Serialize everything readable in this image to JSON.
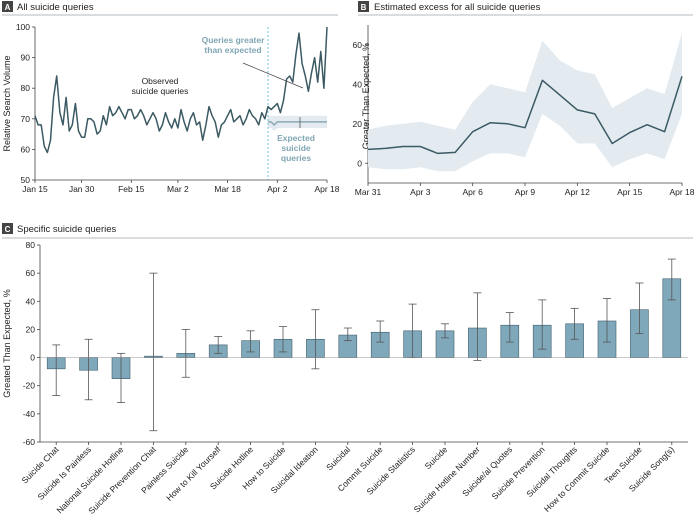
{
  "panels": {
    "A": {
      "letter": "A",
      "title": "All suicide queries"
    },
    "B": {
      "letter": "B",
      "title": "Estimated excess for all suicide queries"
    },
    "C": {
      "letter": "C",
      "title": "Specific suicide queries"
    }
  },
  "chart_data": [
    {
      "id": "A",
      "type": "line",
      "title": "All suicide queries",
      "ylabel": "Relative Search Volume",
      "ylim": [
        50,
        100
      ],
      "yticks": [
        50,
        60,
        70,
        80,
        90,
        100
      ],
      "x_tick_labels": [
        "Jan 15",
        "Jan 30",
        "Feb 15",
        "Mar 2",
        "Mar 18",
        "Apr 2",
        "Apr 18"
      ],
      "x_tick_days": [
        0,
        15,
        31,
        46,
        62,
        78,
        94
      ],
      "xlim_days": [
        0,
        94
      ],
      "cutoff_day": 75,
      "annotations": {
        "observed": "Observed\nsuicide queries",
        "greater": "Queries greater\nthan expected",
        "expected": "Expected\nsuicide\nqueries"
      },
      "series": [
        {
          "name": "Observed suicide queries",
          "days": [
            0,
            1,
            2,
            3,
            4,
            5,
            6,
            7,
            8,
            9,
            10,
            11,
            12,
            13,
            14,
            15,
            16,
            17,
            18,
            19,
            20,
            21,
            22,
            23,
            24,
            25,
            26,
            27,
            28,
            29,
            30,
            31,
            32,
            33,
            34,
            35,
            36,
            37,
            38,
            39,
            40,
            41,
            42,
            43,
            44,
            45,
            46,
            47,
            48,
            49,
            50,
            51,
            52,
            53,
            54,
            55,
            56,
            57,
            58,
            59,
            60,
            61,
            62,
            63,
            64,
            65,
            66,
            67,
            68,
            69,
            70,
            71,
            72,
            73,
            74,
            75,
            76,
            77,
            78,
            79,
            80,
            81,
            82,
            83,
            84,
            85,
            86,
            87,
            88,
            89,
            90,
            91,
            92,
            93,
            94
          ],
          "values": [
            71,
            68,
            68,
            61,
            59,
            63,
            77,
            84,
            72,
            68,
            77,
            66,
            68,
            75,
            66,
            64,
            64,
            70,
            70,
            69,
            65,
            66,
            71,
            68,
            74,
            71,
            72,
            74,
            72,
            70,
            73,
            73,
            70,
            71,
            73,
            71,
            68,
            70,
            72,
            70,
            66,
            68,
            72,
            69,
            67,
            70,
            67,
            73,
            69,
            66,
            70,
            72,
            68,
            69,
            63,
            68,
            74,
            71,
            69,
            64,
            68,
            69,
            71,
            73,
            69,
            70,
            71,
            68,
            70,
            73,
            71,
            70,
            68,
            72,
            70,
            74,
            73,
            74,
            75,
            72,
            76,
            83,
            84,
            82,
            91,
            98,
            88,
            84,
            79,
            85,
            90,
            82,
            92,
            80,
            100
          ]
        },
        {
          "name": "Expected suicide queries",
          "days": [
            75,
            76,
            77,
            78,
            79,
            80,
            81,
            82,
            83,
            84,
            85,
            86,
            87,
            88,
            89,
            90,
            91,
            92,
            93,
            94
          ],
          "values": [
            69,
            69,
            68,
            69,
            69,
            69,
            69,
            69,
            69,
            69,
            69,
            69,
            69,
            69,
            69,
            69,
            69,
            69,
            69,
            69
          ],
          "band_lower": [
            67,
            67,
            66,
            67,
            67,
            67,
            67,
            67,
            67,
            67,
            67,
            67,
            67,
            67,
            67,
            67,
            67,
            67,
            67,
            67
          ],
          "band_upper": [
            71,
            71,
            71,
            71,
            71,
            71,
            71,
            71,
            71,
            71,
            71,
            71,
            71,
            71,
            71,
            71,
            71,
            71,
            71,
            71
          ]
        }
      ]
    },
    {
      "id": "B",
      "type": "line",
      "title": "Estimated excess for all suicide queries",
      "ylabel": "Greater Than Expected, %",
      "ylim": [
        -10,
        70
      ],
      "yticks": [
        0,
        20,
        40,
        60
      ],
      "x_tick_labels": [
        "Mar 31",
        "Apr 3",
        "Apr 6",
        "Apr 9",
        "Apr 12",
        "Apr 15",
        "Apr 18"
      ],
      "x_tick_days": [
        0,
        3,
        6,
        9,
        12,
        15,
        18
      ],
      "series": [
        {
          "name": "Estimated excess",
          "days": [
            0,
            1,
            2,
            3,
            4,
            5,
            6,
            7,
            8,
            9,
            10,
            11,
            12,
            13,
            14,
            15,
            16,
            17,
            18
          ],
          "values": [
            7,
            7.5,
            8.5,
            8.5,
            5,
            5.5,
            16,
            20.5,
            20,
            18,
            42,
            34.5,
            27,
            25,
            10,
            15.5,
            19.5,
            16,
            44
          ],
          "band_lower": [
            -2,
            -3,
            -3,
            -2,
            -4,
            -4,
            1,
            5,
            5,
            3,
            25,
            19,
            10,
            10,
            -2,
            2,
            5,
            2,
            25
          ],
          "band_upper": [
            17,
            19,
            20,
            21,
            19,
            17,
            31,
            40,
            38,
            36,
            62,
            52,
            47,
            45,
            28,
            33,
            38,
            35,
            66
          ]
        }
      ]
    },
    {
      "id": "C",
      "type": "bar",
      "title": "Specific suicide queries",
      "ylabel": "Greated Than Expected, %",
      "ylim": [
        -60,
        80
      ],
      "yticks": [
        -60,
        -40,
        -20,
        0,
        20,
        40,
        60,
        80
      ],
      "categories": [
        "Suicide Chat",
        "Suicide Is Painless",
        "National Suicide Hotline",
        "Suicide Prevention Chat",
        "Painless Suicide",
        "How to Kill Yourself",
        "Suicide Hotline",
        "How to Suicide",
        "Suicidal Ideation",
        "Suicidal",
        "Commit Suicide",
        "Suicide Statistics",
        "Suicide",
        "Suicide Hotline Number",
        "Suicide/al Quotes",
        "Suicide Prevention",
        "Suicidal Thoughts",
        "How to Commit Suicide",
        "Teen Suicide",
        "Suicide Song(s)"
      ],
      "values": [
        -8,
        -9,
        -15,
        1,
        3,
        9,
        12,
        13,
        13,
        16,
        18,
        19,
        19,
        21,
        23,
        23,
        24,
        26,
        34,
        56
      ],
      "err_low": [
        -27,
        -30,
        -32,
        -52,
        -14,
        3,
        4,
        4,
        -8,
        12,
        11,
        0,
        14,
        -2,
        11,
        6,
        13,
        11,
        17,
        41
      ],
      "err_high": [
        9,
        13,
        3,
        60,
        20,
        15,
        19,
        22,
        34,
        21,
        26,
        38,
        24,
        46,
        32,
        41,
        35,
        42,
        53,
        70
      ]
    }
  ],
  "colors": {
    "line": "#3b5a63",
    "band": "#e3ebf1",
    "expected_line": "#8eaab5",
    "bar_fill": "#80a8bb",
    "bar_stroke": "#3f5f6c",
    "dashed": "#5bb8d6",
    "axis": "#444444",
    "header_rule": "#9aa4ab",
    "letter_box": "#444444"
  }
}
